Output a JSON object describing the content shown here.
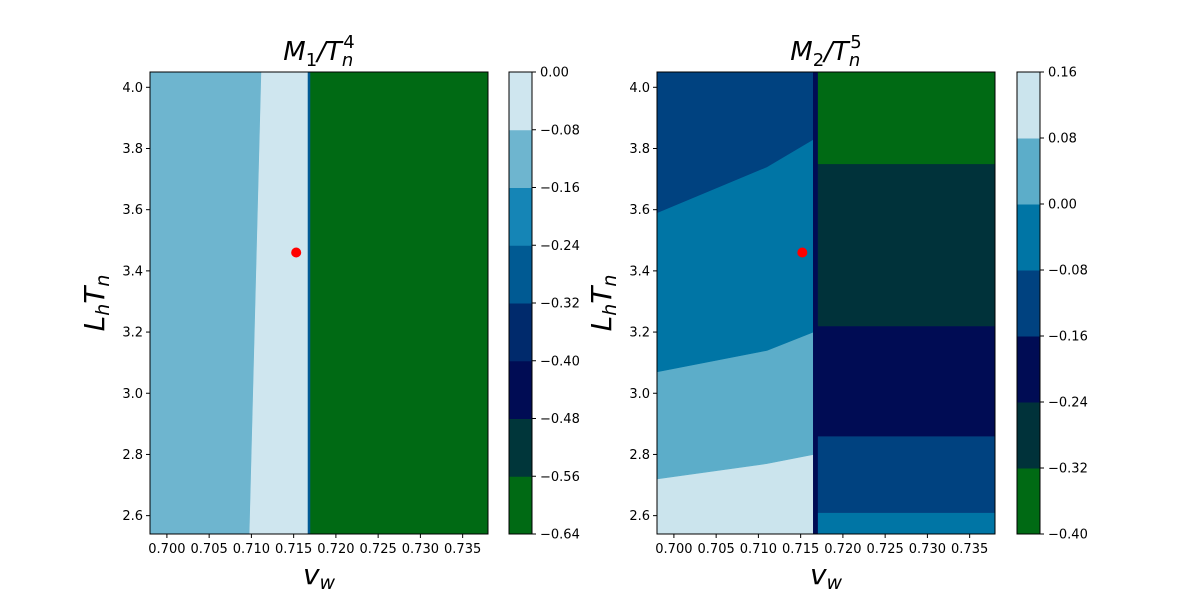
{
  "chart_data": [
    {
      "type": "heatmap",
      "title": "M_1/T_n^4",
      "title_parts": {
        "main": "M",
        "sub": "1",
        "sep": "/T",
        "sub2": "n",
        "sup": "4"
      },
      "xlabel_parts": {
        "main": "v",
        "sub": "w"
      },
      "ylabel_parts": {
        "main": "L",
        "sub": "h",
        "main2": "T",
        "sub2": "n"
      },
      "xlim": [
        0.698,
        0.738
      ],
      "ylim": [
        2.54,
        4.05
      ],
      "x_ticks": [
        "0.700",
        "0.705",
        "0.710",
        "0.715",
        "0.720",
        "0.725",
        "0.730",
        "0.735"
      ],
      "x_tick_values": [
        0.7,
        0.705,
        0.71,
        0.715,
        0.72,
        0.725,
        0.73,
        0.735
      ],
      "y_ticks": [
        "2.6",
        "2.8",
        "3.0",
        "3.2",
        "3.4",
        "3.6",
        "3.8",
        "4.0"
      ],
      "y_tick_values": [
        2.6,
        2.8,
        3.0,
        3.2,
        3.4,
        3.6,
        3.8,
        4.0
      ],
      "colorbar": {
        "levels": [
          -0.64,
          -0.56,
          -0.48,
          -0.4,
          -0.32,
          -0.24,
          -0.16,
          -0.08,
          0.0
        ],
        "tick_labels": [
          "−0.64",
          "−0.56",
          "−0.48",
          "−0.40",
          "−0.32",
          "−0.24",
          "−0.16",
          "−0.08",
          "0.00"
        ],
        "colors": [
          "#006a14",
          "#00363a",
          "#000c54",
          "#002a6c",
          "#005a93",
          "#1585b6",
          "#6eb5cf",
          "#cfe6ef"
        ]
      },
      "regions": [
        {
          "level": 6,
          "points": [
            [
              0.698,
              2.54
            ],
            [
              0.7098,
              2.54
            ],
            [
              0.7112,
              4.05
            ],
            [
              0.698,
              4.05
            ]
          ]
        },
        {
          "level": 7,
          "points": [
            [
              0.7098,
              2.54
            ],
            [
              0.7167,
              2.54
            ],
            [
              0.7167,
              4.05
            ],
            [
              0.7112,
              4.05
            ]
          ]
        },
        {
          "level": 4,
          "points": [
            [
              0.7167,
              2.54
            ],
            [
              0.717,
              2.54
            ],
            [
              0.717,
              4.05
            ],
            [
              0.7167,
              4.05
            ]
          ]
        },
        {
          "level": 0,
          "points": [
            [
              0.717,
              2.54
            ],
            [
              0.738,
              2.54
            ],
            [
              0.738,
              4.05
            ],
            [
              0.717,
              4.05
            ]
          ]
        }
      ],
      "marker": {
        "x": 0.7153,
        "y": 3.46,
        "color": "#ff0000"
      }
    },
    {
      "type": "heatmap",
      "title": "M_2/T_n^5",
      "title_parts": {
        "main": "M",
        "sub": "2",
        "sep": "/T",
        "sub2": "n",
        "sup": "5"
      },
      "xlabel_parts": {
        "main": "v",
        "sub": "w"
      },
      "ylabel_parts": {
        "main": "L",
        "sub": "h",
        "main2": "T",
        "sub2": "n"
      },
      "xlim": [
        0.698,
        0.738
      ],
      "ylim": [
        2.54,
        4.05
      ],
      "x_ticks": [
        "0.700",
        "0.705",
        "0.710",
        "0.715",
        "0.720",
        "0.725",
        "0.730",
        "0.735"
      ],
      "x_tick_values": [
        0.7,
        0.705,
        0.71,
        0.715,
        0.72,
        0.725,
        0.73,
        0.735
      ],
      "y_ticks": [
        "2.6",
        "2.8",
        "3.0",
        "3.2",
        "3.4",
        "3.6",
        "3.8",
        "4.0"
      ],
      "y_tick_values": [
        2.6,
        2.8,
        3.0,
        3.2,
        3.4,
        3.6,
        3.8,
        4.0
      ],
      "colorbar": {
        "levels": [
          -0.4,
          -0.32,
          -0.24,
          -0.16,
          -0.08,
          0.0,
          0.08,
          0.16
        ],
        "tick_labels": [
          "−0.40",
          "−0.32",
          "−0.24",
          "−0.16",
          "−0.08",
          "0.00",
          "0.08",
          "0.16"
        ],
        "colors": [
          "#006a14",
          "#00323a",
          "#000c54",
          "#004280",
          "#0075a5",
          "#5cadc9",
          "#cbe4ed"
        ]
      },
      "regions": [
        {
          "level": 6,
          "points": [
            [
              0.698,
              2.54
            ],
            [
              0.7165,
              2.54
            ],
            [
              0.7165,
              2.8
            ],
            [
              0.711,
              2.77
            ],
            [
              0.698,
              2.72
            ]
          ]
        },
        {
          "level": 5,
          "points": [
            [
              0.698,
              2.72
            ],
            [
              0.711,
              2.77
            ],
            [
              0.7165,
              2.8
            ],
            [
              0.7165,
              3.2
            ],
            [
              0.711,
              3.14
            ],
            [
              0.698,
              3.07
            ]
          ]
        },
        {
          "level": 4,
          "points": [
            [
              0.698,
              3.07
            ],
            [
              0.711,
              3.14
            ],
            [
              0.7165,
              3.2
            ],
            [
              0.7165,
              3.83
            ],
            [
              0.711,
              3.74
            ],
            [
              0.698,
              3.59
            ]
          ]
        },
        {
          "level": 3,
          "points": [
            [
              0.698,
              3.59
            ],
            [
              0.711,
              3.74
            ],
            [
              0.7165,
              3.83
            ],
            [
              0.7165,
              4.05
            ],
            [
              0.698,
              4.05
            ]
          ]
        },
        {
          "level": 4,
          "points": [
            [
              0.717,
              2.54
            ],
            [
              0.738,
              2.54
            ],
            [
              0.738,
              2.61
            ],
            [
              0.717,
              2.61
            ]
          ]
        },
        {
          "level": 3,
          "points": [
            [
              0.717,
              2.61
            ],
            [
              0.738,
              2.61
            ],
            [
              0.738,
              2.86
            ],
            [
              0.717,
              2.86
            ]
          ]
        },
        {
          "level": 2,
          "points": [
            [
              0.717,
              2.86
            ],
            [
              0.738,
              2.86
            ],
            [
              0.738,
              3.22
            ],
            [
              0.717,
              3.22
            ]
          ]
        },
        {
          "level": 1,
          "points": [
            [
              0.717,
              3.22
            ],
            [
              0.738,
              3.22
            ],
            [
              0.738,
              3.75
            ],
            [
              0.717,
              3.75
            ]
          ]
        },
        {
          "level": 0,
          "points": [
            [
              0.717,
              3.75
            ],
            [
              0.738,
              3.75
            ],
            [
              0.738,
              4.05
            ],
            [
              0.717,
              4.05
            ]
          ]
        },
        {
          "level": 2,
          "points": [
            [
              0.7165,
              2.54
            ],
            [
              0.717,
              2.54
            ],
            [
              0.717,
              4.05
            ],
            [
              0.7165,
              4.05
            ]
          ]
        }
      ],
      "marker": {
        "x": 0.7152,
        "y": 3.46,
        "color": "#ff0000"
      }
    }
  ]
}
